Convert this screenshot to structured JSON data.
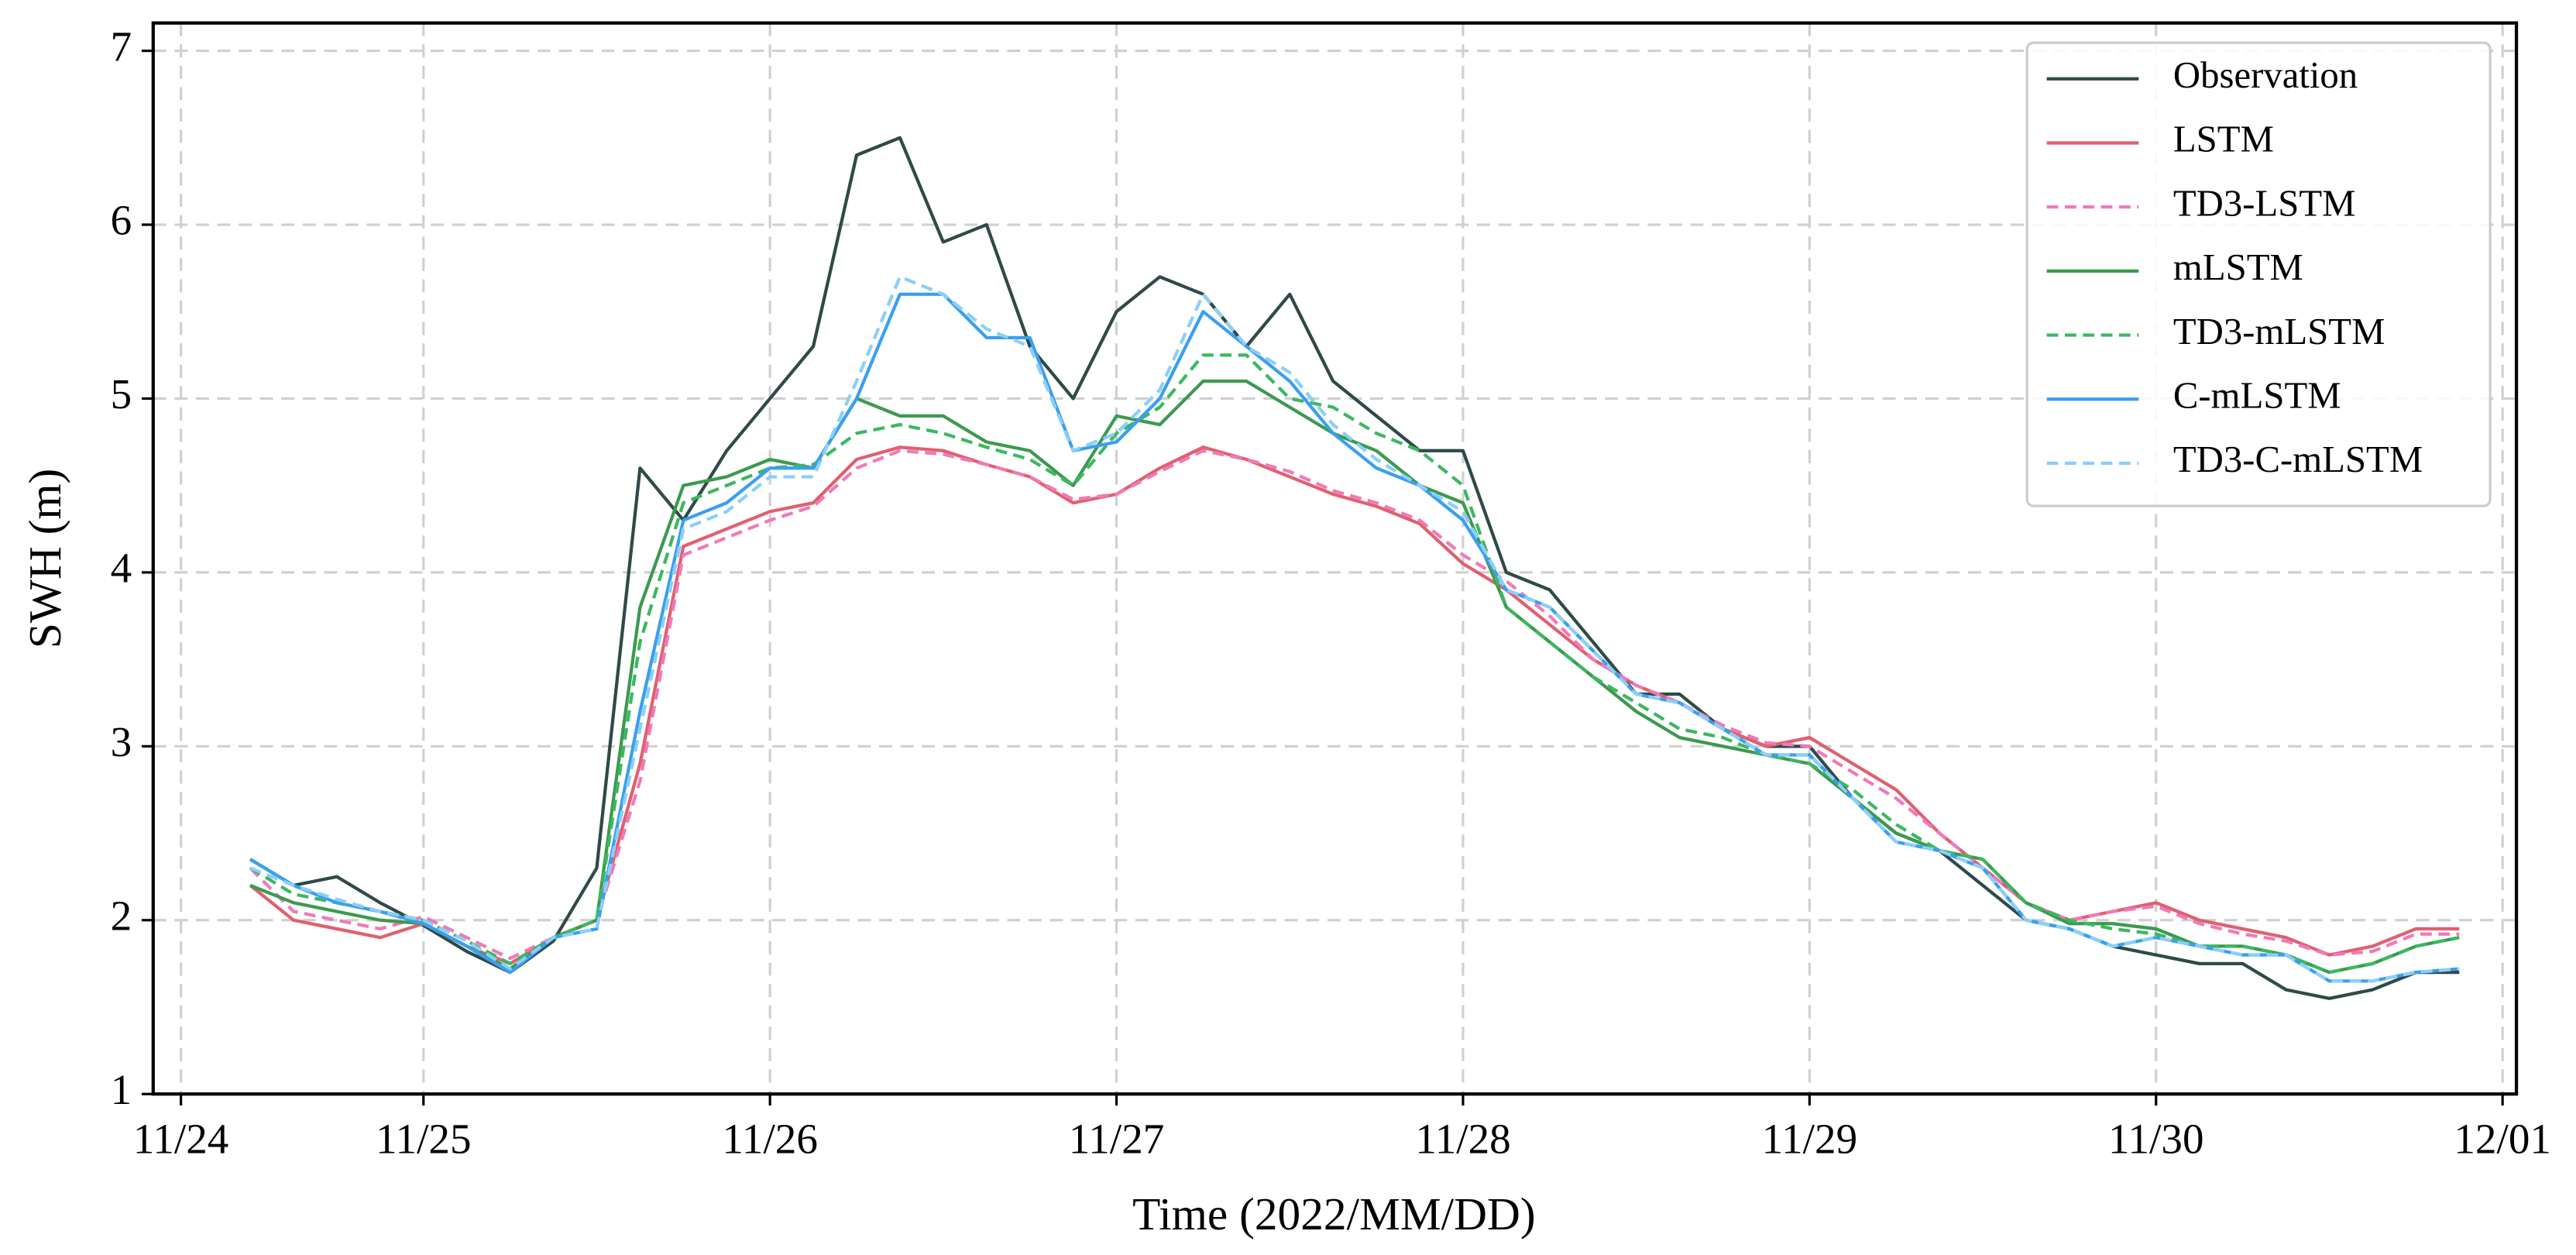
{
  "chart_data": {
    "type": "line",
    "xlabel": "Time (2022/MM/DD)",
    "ylabel": "SWH (m)",
    "x": [
      0.5,
      0.625,
      0.75,
      0.875,
      1.0,
      1.125,
      1.25,
      1.375,
      1.5,
      1.625,
      1.75,
      1.875,
      2.0,
      2.125,
      2.25,
      2.375,
      2.5,
      2.625,
      2.75,
      2.875,
      3.0,
      3.125,
      3.25,
      3.375,
      3.5,
      3.625,
      3.75,
      3.875,
      4.0,
      4.125,
      4.25,
      4.375,
      4.5,
      4.625,
      4.75,
      4.875,
      5.0,
      5.125,
      5.25,
      5.375,
      5.5,
      5.625,
      5.75,
      5.875,
      6.0,
      6.125,
      6.25,
      6.375,
      6.5,
      6.625,
      6.75,
      6.875
    ],
    "series": [
      {
        "name": "Observation",
        "color": "#2f4a48",
        "linestyle": "solid",
        "values": [
          2.35,
          2.2,
          2.25,
          2.1,
          1.97,
          1.82,
          1.7,
          1.88,
          2.3,
          4.6,
          4.3,
          4.7,
          5.0,
          5.3,
          6.4,
          6.5,
          5.9,
          6.0,
          5.3,
          5.0,
          5.5,
          5.7,
          5.6,
          5.3,
          5.6,
          5.1,
          4.9,
          4.7,
          4.7,
          4.0,
          3.9,
          3.6,
          3.3,
          3.3,
          3.1,
          3.0,
          3.0,
          2.7,
          2.5,
          2.4,
          2.2,
          2.0,
          1.95,
          1.85,
          1.8,
          1.75,
          1.75,
          1.6,
          1.55,
          1.6,
          1.7,
          1.7
        ]
      },
      {
        "name": "LSTM",
        "color": "#e0606f",
        "linestyle": "solid",
        "values": [
          2.2,
          2.0,
          1.95,
          1.9,
          1.98,
          1.85,
          1.75,
          1.9,
          2.0,
          2.9,
          4.15,
          4.25,
          4.35,
          4.4,
          4.65,
          4.72,
          4.7,
          4.62,
          4.55,
          4.4,
          4.45,
          4.6,
          4.72,
          4.65,
          4.55,
          4.45,
          4.38,
          4.28,
          4.05,
          3.9,
          3.7,
          3.5,
          3.35,
          3.25,
          3.1,
          3.0,
          3.05,
          2.9,
          2.75,
          2.5,
          2.3,
          2.1,
          2.0,
          2.05,
          2.1,
          2.0,
          1.95,
          1.9,
          1.8,
          1.85,
          1.95,
          1.95
        ]
      },
      {
        "name": "TD3-LSTM",
        "color": "#f07ab8",
        "linestyle": "dashed",
        "values": [
          2.3,
          2.05,
          2.0,
          1.95,
          2.02,
          1.9,
          1.78,
          1.9,
          2.0,
          2.8,
          4.1,
          4.2,
          4.3,
          4.38,
          4.6,
          4.7,
          4.68,
          4.62,
          4.55,
          4.42,
          4.45,
          4.58,
          4.7,
          4.65,
          4.58,
          4.47,
          4.4,
          4.3,
          4.1,
          3.95,
          3.75,
          3.5,
          3.35,
          3.25,
          3.12,
          3.02,
          3.0,
          2.85,
          2.7,
          2.5,
          2.3,
          2.1,
          2.0,
          2.05,
          2.08,
          1.98,
          1.92,
          1.88,
          1.8,
          1.82,
          1.92,
          1.92
        ]
      },
      {
        "name": "mLSTM",
        "color": "#3c9a50",
        "linestyle": "solid",
        "values": [
          2.2,
          2.1,
          2.05,
          2.0,
          1.98,
          1.85,
          1.72,
          1.9,
          2.0,
          3.8,
          4.5,
          4.55,
          4.65,
          4.6,
          5.0,
          4.9,
          4.9,
          4.75,
          4.7,
          4.5,
          4.9,
          4.85,
          5.1,
          5.1,
          4.95,
          4.8,
          4.7,
          4.5,
          4.4,
          3.8,
          3.6,
          3.4,
          3.2,
          3.05,
          3.0,
          2.95,
          2.9,
          2.7,
          2.5,
          2.4,
          2.35,
          2.1,
          1.98,
          1.98,
          1.95,
          1.85,
          1.85,
          1.8,
          1.7,
          1.75,
          1.85,
          1.9
        ]
      },
      {
        "name": "TD3-mLSTM",
        "color": "#3cb860",
        "linestyle": "dashed",
        "values": [
          2.3,
          2.15,
          2.1,
          2.05,
          2.0,
          1.88,
          1.75,
          1.9,
          2.0,
          3.6,
          4.4,
          4.5,
          4.6,
          4.62,
          4.8,
          4.85,
          4.8,
          4.72,
          4.65,
          4.5,
          4.8,
          4.95,
          5.25,
          5.25,
          5.0,
          4.95,
          4.8,
          4.7,
          4.5,
          3.8,
          3.6,
          3.4,
          3.25,
          3.1,
          3.05,
          2.95,
          2.9,
          2.75,
          2.55,
          2.4,
          2.35,
          2.1,
          2.0,
          1.95,
          1.92,
          1.85,
          1.85,
          1.8,
          1.7,
          1.75,
          1.85,
          1.9
        ]
      },
      {
        "name": "C-mLSTM",
        "color": "#3a9ff0",
        "linestyle": "solid",
        "values": [
          2.35,
          2.2,
          2.1,
          2.05,
          1.98,
          1.85,
          1.7,
          1.9,
          1.95,
          3.2,
          4.3,
          4.4,
          4.6,
          4.6,
          5.0,
          5.6,
          5.6,
          5.35,
          5.35,
          4.7,
          4.75,
          5.0,
          5.5,
          5.3,
          5.1,
          4.8,
          4.6,
          4.5,
          4.3,
          3.9,
          3.8,
          3.55,
          3.3,
          3.25,
          3.1,
          2.95,
          2.95,
          2.7,
          2.45,
          2.4,
          2.3,
          2.0,
          1.95,
          1.85,
          1.9,
          1.85,
          1.8,
          1.8,
          1.65,
          1.65,
          1.7,
          1.72
        ]
      },
      {
        "name": "TD3-C-mLSTM",
        "color": "#8ccff8",
        "linestyle": "dashed",
        "values": [
          2.3,
          2.2,
          2.12,
          2.05,
          2.0,
          1.88,
          1.72,
          1.9,
          1.95,
          3.1,
          4.25,
          4.35,
          4.55,
          4.55,
          5.1,
          5.7,
          5.6,
          5.4,
          5.3,
          4.7,
          4.8,
          5.05,
          5.6,
          5.3,
          5.15,
          4.85,
          4.65,
          4.5,
          4.35,
          3.9,
          3.8,
          3.55,
          3.3,
          3.25,
          3.1,
          2.95,
          2.95,
          2.7,
          2.45,
          2.4,
          2.3,
          2.0,
          1.95,
          1.85,
          1.9,
          1.85,
          1.8,
          1.8,
          1.65,
          1.65,
          1.7,
          1.72
        ]
      }
    ],
    "xlim": [
      0.22,
      7.04
    ],
    "xticks": [
      {
        "value": 0.3,
        "label": "11/24"
      },
      {
        "value": 1,
        "label": "11/25"
      },
      {
        "value": 2,
        "label": "11/26"
      },
      {
        "value": 3,
        "label": "11/27"
      },
      {
        "value": 4,
        "label": "11/28"
      },
      {
        "value": 5,
        "label": "11/29"
      },
      {
        "value": 6,
        "label": "11/30"
      },
      {
        "value": 7,
        "label": "12/01"
      }
    ],
    "ylim": [
      1,
      7.16
    ],
    "yticks": [
      1,
      2,
      3,
      4,
      5,
      6,
      7
    ],
    "grid": true,
    "legend": "upper right"
  }
}
